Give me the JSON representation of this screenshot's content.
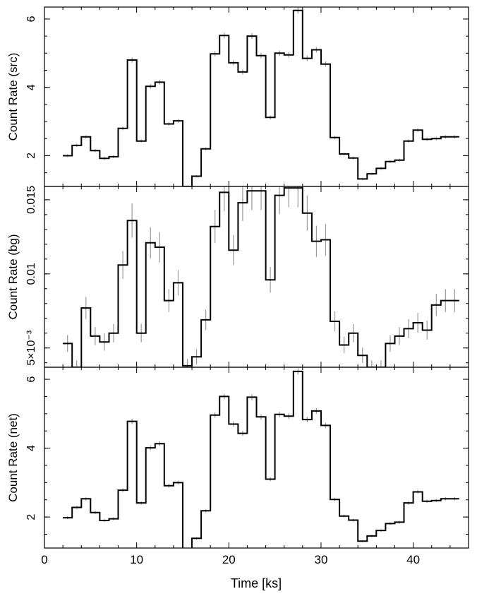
{
  "figure": {
    "xlabel": "Time [ks]"
  },
  "chart_data": [
    {
      "type": "line",
      "step": true,
      "ylabel": "Count Rate (src)",
      "xlim": [
        0,
        46
      ],
      "ylim": [
        1.1,
        6.35
      ],
      "xticks": [
        "0",
        "10",
        "20",
        "30",
        "40"
      ],
      "yticks": [
        {
          "value": 2,
          "label": "2"
        },
        {
          "value": 4,
          "label": "4"
        },
        {
          "value": 6,
          "label": "6"
        }
      ],
      "x": [
        2.5,
        3.5,
        4.5,
        5.5,
        6.5,
        7.5,
        8.5,
        9.5,
        10.5,
        11.5,
        12.5,
        13.5,
        14.5,
        15.5,
        16.5,
        17.5,
        18.5,
        19.5,
        20.5,
        21.5,
        22.5,
        23.5,
        24.5,
        25.5,
        26.5,
        27.5,
        28.5,
        29.5,
        30.5,
        31.5,
        32.5,
        33.5,
        34.5,
        35.5,
        36.5,
        37.5,
        38.5,
        39.5,
        40.5,
        41.5,
        42.5,
        43.5,
        44.5
      ],
      "values": [
        2.0,
        2.3,
        2.55,
        2.15,
        1.92,
        1.97,
        2.8,
        4.8,
        2.43,
        4.03,
        4.15,
        2.93,
        3.02,
        1.1,
        1.4,
        2.2,
        4.98,
        5.52,
        4.72,
        4.45,
        5.5,
        4.93,
        3.12,
        5.0,
        4.95,
        6.25,
        4.85,
        5.1,
        4.68,
        2.53,
        2.05,
        1.93,
        1.32,
        1.47,
        1.63,
        1.83,
        1.87,
        2.43,
        2.75,
        2.48,
        2.5,
        2.55,
        2.55
      ]
    },
    {
      "type": "line",
      "step": true,
      "ylabel": "Count Rate (bg)",
      "xlim": [
        0,
        46
      ],
      "ylim": [
        0.0037,
        0.0159
      ],
      "xticks": [
        "0",
        "10",
        "20",
        "30",
        "40"
      ],
      "yticks": [
        {
          "value": 0.005,
          "label": "5×10⁻³"
        },
        {
          "value": 0.01,
          "label": "0.01"
        },
        {
          "value": 0.015,
          "label": "0.015"
        }
      ],
      "x": [
        2.5,
        3.5,
        4.5,
        5.5,
        6.5,
        7.5,
        8.5,
        9.5,
        10.5,
        11.5,
        12.5,
        13.5,
        14.5,
        15.5,
        16.5,
        17.5,
        18.5,
        19.5,
        20.5,
        21.5,
        22.5,
        23.5,
        24.5,
        25.5,
        26.5,
        27.5,
        28.5,
        29.5,
        30.5,
        31.5,
        32.5,
        33.5,
        34.5,
        35.5,
        36.5,
        37.5,
        38.5,
        39.5,
        40.5,
        41.5,
        42.5,
        43.5,
        44.5
      ],
      "values": [
        0.0053,
        0.0037,
        0.0077,
        0.0058,
        0.0054,
        0.006,
        0.0106,
        0.0136,
        0.006,
        0.0121,
        0.0118,
        0.0082,
        0.0094,
        0.0038,
        0.0044,
        0.0069,
        0.0132,
        0.0155,
        0.0116,
        0.0148,
        0.0156,
        0.0156,
        0.0096,
        0.0153,
        0.0158,
        0.0158,
        0.0141,
        0.0122,
        0.0123,
        0.0068,
        0.0052,
        0.006,
        0.0045,
        0.0037,
        0.0037,
        0.0053,
        0.0058,
        0.0063,
        0.0067,
        0.0062,
        0.0079,
        0.0082,
        0.0082
      ]
    },
    {
      "type": "line",
      "step": true,
      "ylabel": "Count Rate (net)",
      "xlim": [
        0,
        46
      ],
      "ylim": [
        1.1,
        6.35
      ],
      "xticks": [
        "0",
        "10",
        "20",
        "30",
        "40"
      ],
      "yticks": [
        {
          "value": 2,
          "label": "2"
        },
        {
          "value": 4,
          "label": "4"
        },
        {
          "value": 6,
          "label": "6"
        }
      ],
      "x": [
        2.5,
        3.5,
        4.5,
        5.5,
        6.5,
        7.5,
        8.5,
        9.5,
        10.5,
        11.5,
        12.5,
        13.5,
        14.5,
        15.5,
        16.5,
        17.5,
        18.5,
        19.5,
        20.5,
        21.5,
        22.5,
        23.5,
        24.5,
        25.5,
        26.5,
        27.5,
        28.5,
        29.5,
        30.5,
        31.5,
        32.5,
        33.5,
        34.5,
        35.5,
        36.5,
        37.5,
        38.5,
        39.5,
        40.5,
        41.5,
        42.5,
        43.5,
        44.5
      ],
      "values": [
        1.98,
        2.28,
        2.53,
        2.13,
        1.9,
        1.95,
        2.78,
        4.78,
        2.41,
        4.01,
        4.13,
        2.91,
        3.0,
        1.08,
        1.38,
        2.18,
        4.96,
        5.5,
        4.7,
        4.43,
        5.48,
        4.91,
        3.1,
        4.98,
        4.93,
        6.23,
        4.83,
        5.08,
        4.66,
        2.51,
        2.03,
        1.91,
        1.3,
        1.45,
        1.61,
        1.81,
        1.85,
        2.41,
        2.73,
        2.46,
        2.48,
        2.53,
        2.53
      ]
    }
  ]
}
